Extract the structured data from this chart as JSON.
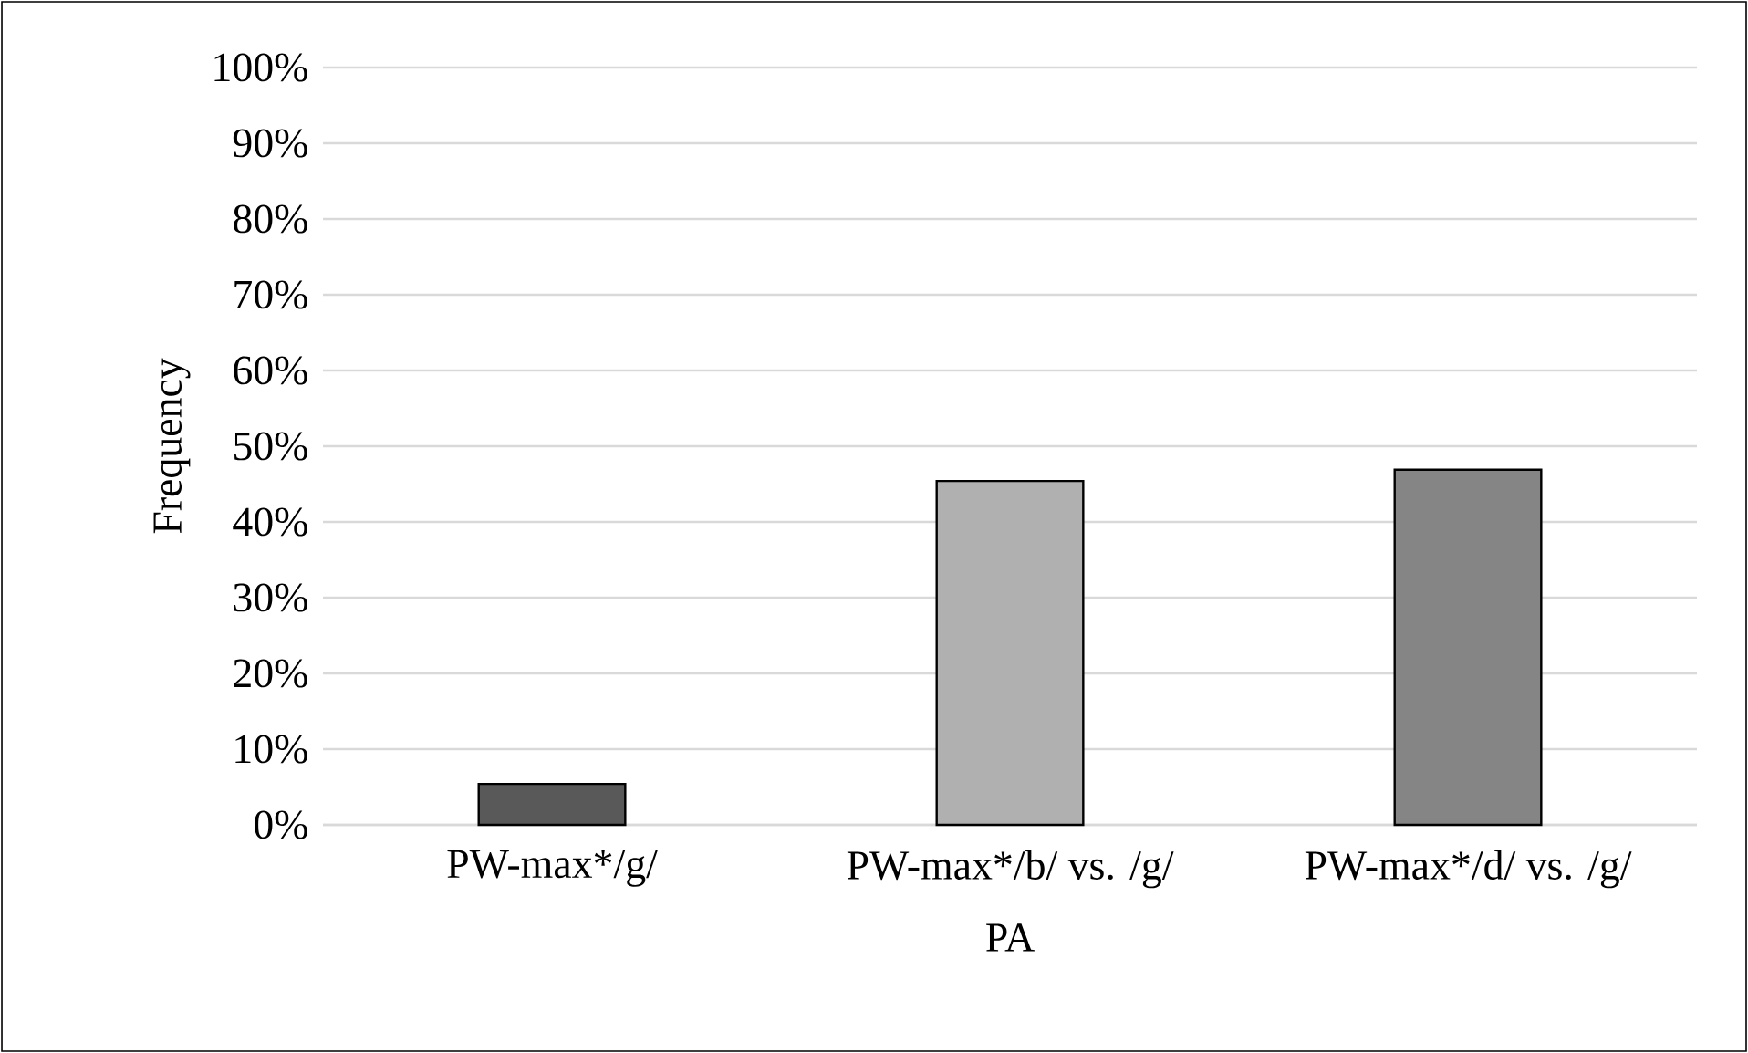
{
  "chart_data": {
    "type": "bar",
    "xlabel": "PA",
    "ylabel": "Frequency",
    "categories": [
      "PW-max*/g/",
      "PW-max*/b/ vs. /g/",
      "PW-max*/d/ vs. /g/"
    ],
    "values": [
      5.4,
      45.4,
      46.9
    ],
    "colors": [
      "#595959",
      "#b0b0b0",
      "#858585"
    ],
    "ylim": [
      0,
      100
    ],
    "yticks": [
      {
        "value": 0,
        "label": "0%"
      },
      {
        "value": 10,
        "label": "10%"
      },
      {
        "value": 20,
        "label": "20%"
      },
      {
        "value": 30,
        "label": "30%"
      },
      {
        "value": 40,
        "label": "40%"
      },
      {
        "value": 50,
        "label": "50%"
      },
      {
        "value": 60,
        "label": "60%"
      },
      {
        "value": 70,
        "label": "70%"
      },
      {
        "value": 80,
        "label": "80%"
      },
      {
        "value": 90,
        "label": "90%"
      },
      {
        "value": 100,
        "label": "100%"
      }
    ],
    "grid": "y"
  }
}
